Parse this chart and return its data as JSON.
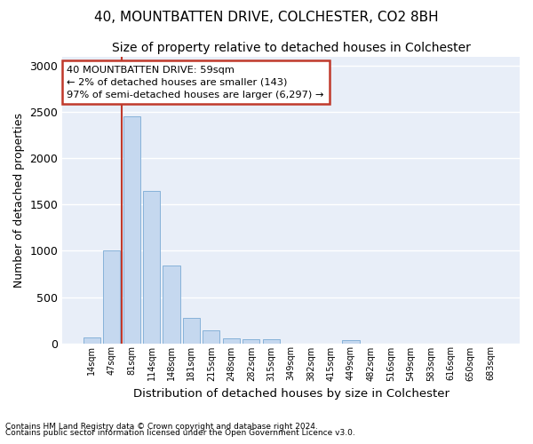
{
  "title1": "40, MOUNTBATTEN DRIVE, COLCHESTER, CO2 8BH",
  "title2": "Size of property relative to detached houses in Colchester",
  "xlabel": "Distribution of detached houses by size in Colchester",
  "ylabel": "Number of detached properties",
  "bar_labels": [
    "14sqm",
    "47sqm",
    "81sqm",
    "114sqm",
    "148sqm",
    "181sqm",
    "215sqm",
    "248sqm",
    "282sqm",
    "315sqm",
    "349sqm",
    "382sqm",
    "415sqm",
    "449sqm",
    "482sqm",
    "516sqm",
    "549sqm",
    "583sqm",
    "616sqm",
    "650sqm",
    "683sqm"
  ],
  "bar_values": [
    60,
    1000,
    2460,
    1650,
    840,
    275,
    135,
    55,
    45,
    40,
    0,
    0,
    0,
    35,
    0,
    0,
    0,
    0,
    0,
    0,
    0
  ],
  "bar_color": "#c5d8ef",
  "bar_edge_color": "#7aaad4",
  "background_color": "#e8eef8",
  "grid_color": "#ffffff",
  "vline_x_pos": 1.5,
  "vline_color": "#c0392b",
  "annotation_text": "40 MOUNTBATTEN DRIVE: 59sqm\n← 2% of detached houses are smaller (143)\n97% of semi-detached houses are larger (6,297) →",
  "annotation_box_facecolor": "#ffffff",
  "annotation_box_edgecolor": "#c0392b",
  "footnote1": "Contains HM Land Registry data © Crown copyright and database right 2024.",
  "footnote2": "Contains public sector information licensed under the Open Government Licence v3.0.",
  "ylim": [
    0,
    3100
  ],
  "yticks": [
    0,
    500,
    1000,
    1500,
    2000,
    2500,
    3000
  ]
}
